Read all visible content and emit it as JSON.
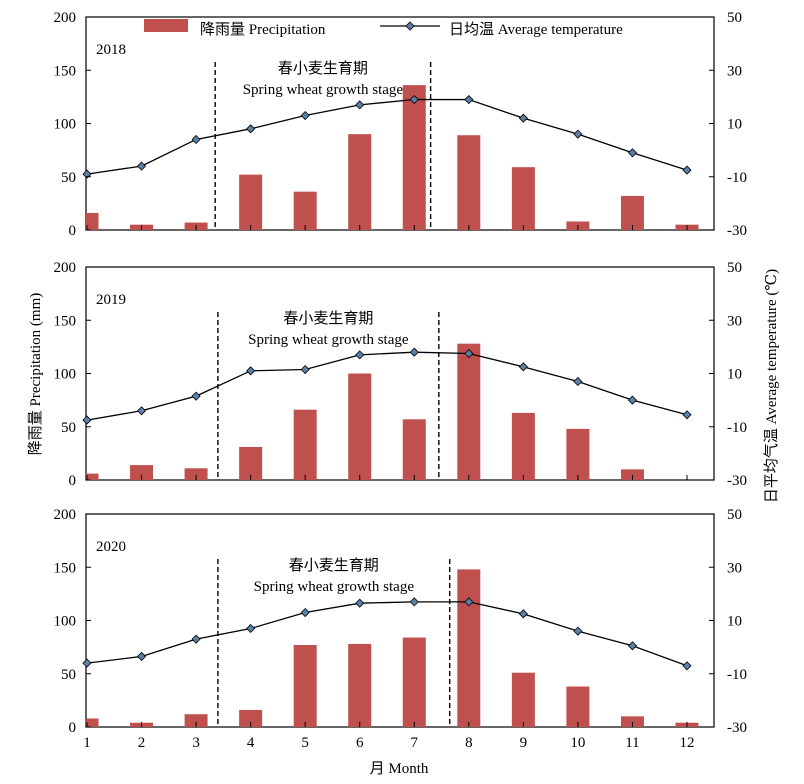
{
  "chart_data": {
    "type": "bar+line",
    "x": [
      1,
      2,
      3,
      4,
      5,
      6,
      7,
      8,
      9,
      10,
      11,
      12
    ],
    "xlabel": "月 Month",
    "ylabel_left": "降雨量 Precipitation (mm)",
    "ylabel_right": "日平均气温 Average temperature (℃)",
    "ylim_left": [
      0,
      200
    ],
    "ylim_right": [
      -30,
      50
    ],
    "yticks_left": [
      0,
      50,
      100,
      150,
      200
    ],
    "yticks_right": [
      -30,
      -10,
      10,
      30,
      50
    ],
    "legend": {
      "precip": "降雨量  Precipitation",
      "temp": "日均温    Average temperature",
      "placement": "top"
    },
    "stage_label_cn": "春小麦生育期",
    "stage_label_en": "Spring wheat growth stage",
    "colors": {
      "bar": "#c0504d",
      "line": "#000000",
      "marker": "#5b7fa6"
    },
    "panels": [
      {
        "year": "2018",
        "precipitation": [
          16,
          5,
          7,
          52,
          36,
          90,
          136,
          89,
          59,
          8,
          32,
          5
        ],
        "temperature": [
          -9,
          -6,
          4,
          8,
          13,
          17,
          19,
          19,
          12,
          6,
          -1,
          -7.5
        ],
        "stage_start": 3.35,
        "stage_end": 7.3
      },
      {
        "year": "2019",
        "precipitation": [
          6,
          14,
          11,
          31,
          66,
          100,
          57,
          128,
          63,
          48,
          10,
          0
        ],
        "temperature": [
          -7.5,
          -4,
          1.5,
          11,
          11.5,
          17,
          18,
          17.5,
          12.5,
          7,
          0,
          -5.5
        ],
        "stage_start": 3.4,
        "stage_end": 7.45
      },
      {
        "year": "2020",
        "precipitation": [
          8,
          4,
          12,
          16,
          77,
          78,
          84,
          148,
          51,
          38,
          10,
          4
        ],
        "temperature": [
          -6,
          -3.5,
          3,
          7,
          13,
          16.5,
          17,
          17,
          12.5,
          6,
          0.5,
          -7
        ],
        "stage_start": 3.4,
        "stage_end": 7.65
      }
    ]
  }
}
